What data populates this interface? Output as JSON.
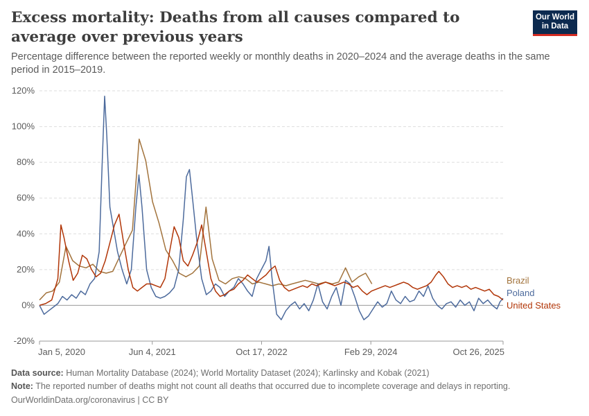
{
  "header": {
    "title": "Excess mortality: Deaths from all causes compared to average over previous years",
    "subtitle": "Percentage difference between the reported weekly or monthly deaths in 2020–2024 and the average deaths in the same period in 2015–2019."
  },
  "logo": {
    "line1": "Our World",
    "line2": "in Data"
  },
  "footer": {
    "source_label": "Data source:",
    "source_text": "Human Mortality Database (2024); World Mortality Dataset (2024); Karlinsky and Kobak (2021)",
    "note_label": "Note:",
    "note_text": "The reported number of deaths might not count all deaths that occurred due to incomplete coverage and delays in reporting.",
    "site": "OurWorldinData.org/coronavirus | CC BY"
  },
  "chart_data": {
    "type": "line",
    "xlabel": "",
    "ylabel": "",
    "xlim": [
      "2020-01-05",
      "2025-10-26"
    ],
    "ylim": [
      -20,
      120
    ],
    "y_ticks": [
      -20,
      0,
      20,
      40,
      60,
      80,
      100,
      120
    ],
    "y_tick_labels": [
      "-20%",
      "0%",
      "20%",
      "40%",
      "60%",
      "80%",
      "100%",
      "120%"
    ],
    "x_ticks": [
      "2020-01-05",
      "2021-06-04",
      "2022-10-17",
      "2024-02-29",
      "2025-10-26"
    ],
    "x_tick_labels": [
      "Jan 5, 2020",
      "Jun 4, 2021",
      "Oct 17, 2022",
      "Feb 29, 2024",
      "Oct 26, 2025"
    ],
    "grid": true,
    "legend": "right",
    "series": [
      {
        "name": "Brazil",
        "color": "#a2733c",
        "points": [
          [
            "2020-01-05",
            3
          ],
          [
            "2020-02-05",
            7
          ],
          [
            "2020-03-05",
            8
          ],
          [
            "2020-04-05",
            13
          ],
          [
            "2020-05-05",
            33
          ],
          [
            "2020-06-05",
            25
          ],
          [
            "2020-07-05",
            22
          ],
          [
            "2020-08-05",
            21
          ],
          [
            "2020-09-05",
            23
          ],
          [
            "2020-10-05",
            19
          ],
          [
            "2020-11-05",
            18
          ],
          [
            "2020-12-05",
            19
          ],
          [
            "2021-01-05",
            27
          ],
          [
            "2021-02-05",
            35
          ],
          [
            "2021-03-05",
            42
          ],
          [
            "2021-04-05",
            93
          ],
          [
            "2021-05-05",
            81
          ],
          [
            "2021-06-05",
            58
          ],
          [
            "2021-07-05",
            46
          ],
          [
            "2021-08-05",
            31
          ],
          [
            "2021-09-05",
            25
          ],
          [
            "2021-10-05",
            18
          ],
          [
            "2021-11-05",
            16
          ],
          [
            "2021-12-05",
            18
          ],
          [
            "2022-01-05",
            22
          ],
          [
            "2022-02-05",
            55
          ],
          [
            "2022-03-05",
            26
          ],
          [
            "2022-04-05",
            14
          ],
          [
            "2022-05-05",
            12
          ],
          [
            "2022-06-05",
            15
          ],
          [
            "2022-07-05",
            16
          ],
          [
            "2022-08-05",
            15
          ],
          [
            "2022-09-05",
            12
          ],
          [
            "2022-10-05",
            13
          ],
          [
            "2022-11-05",
            12
          ],
          [
            "2022-12-05",
            11
          ],
          [
            "2023-01-05",
            12
          ],
          [
            "2023-02-05",
            11
          ],
          [
            "2023-03-05",
            12
          ],
          [
            "2023-04-05",
            13
          ],
          [
            "2023-05-05",
            14
          ],
          [
            "2023-06-05",
            13
          ],
          [
            "2023-07-05",
            12
          ],
          [
            "2023-08-05",
            13
          ],
          [
            "2023-09-05",
            12
          ],
          [
            "2023-10-05",
            13
          ],
          [
            "2023-11-05",
            21
          ],
          [
            "2023-12-05",
            13
          ],
          [
            "2024-01-05",
            16
          ],
          [
            "2024-02-05",
            18
          ],
          [
            "2024-03-05",
            12
          ]
        ]
      },
      {
        "name": "Poland",
        "color": "#4c6a9c",
        "points": [
          [
            "2020-01-05",
            0
          ],
          [
            "2020-01-26",
            -5
          ],
          [
            "2020-02-16",
            -3
          ],
          [
            "2020-03-08",
            -1
          ],
          [
            "2020-03-29",
            1
          ],
          [
            "2020-04-19",
            5
          ],
          [
            "2020-05-10",
            3
          ],
          [
            "2020-05-31",
            6
          ],
          [
            "2020-06-21",
            4
          ],
          [
            "2020-07-12",
            8
          ],
          [
            "2020-08-02",
            6
          ],
          [
            "2020-08-23",
            12
          ],
          [
            "2020-09-13",
            15
          ],
          [
            "2020-10-04",
            30
          ],
          [
            "2020-10-18",
            80
          ],
          [
            "2020-10-29",
            117
          ],
          [
            "2020-11-08",
            95
          ],
          [
            "2020-11-22",
            55
          ],
          [
            "2020-12-06",
            45
          ],
          [
            "2020-12-27",
            30
          ],
          [
            "2021-01-17",
            20
          ],
          [
            "2021-02-07",
            12
          ],
          [
            "2021-02-28",
            20
          ],
          [
            "2021-03-21",
            55
          ],
          [
            "2021-04-04",
            73
          ],
          [
            "2021-04-18",
            55
          ],
          [
            "2021-05-09",
            20
          ],
          [
            "2021-05-30",
            10
          ],
          [
            "2021-06-20",
            5
          ],
          [
            "2021-07-11",
            4
          ],
          [
            "2021-08-01",
            5
          ],
          [
            "2021-08-22",
            7
          ],
          [
            "2021-09-12",
            10
          ],
          [
            "2021-10-03",
            20
          ],
          [
            "2021-10-24",
            48
          ],
          [
            "2021-11-07",
            72
          ],
          [
            "2021-11-21",
            76
          ],
          [
            "2021-12-05",
            60
          ],
          [
            "2021-12-26",
            35
          ],
          [
            "2022-01-16",
            15
          ],
          [
            "2022-02-06",
            6
          ],
          [
            "2022-02-27",
            8
          ],
          [
            "2022-03-20",
            12
          ],
          [
            "2022-04-10",
            10
          ],
          [
            "2022-05-01",
            5
          ],
          [
            "2022-05-22",
            8
          ],
          [
            "2022-06-12",
            10
          ],
          [
            "2022-07-03",
            15
          ],
          [
            "2022-07-24",
            12
          ],
          [
            "2022-08-14",
            8
          ],
          [
            "2022-09-04",
            5
          ],
          [
            "2022-09-25",
            15
          ],
          [
            "2022-10-16",
            20
          ],
          [
            "2022-11-06",
            25
          ],
          [
            "2022-11-20",
            33
          ],
          [
            "2022-12-04",
            15
          ],
          [
            "2022-12-25",
            -5
          ],
          [
            "2023-01-15",
            -8
          ],
          [
            "2023-02-05",
            -3
          ],
          [
            "2023-02-26",
            0
          ],
          [
            "2023-03-19",
            2
          ],
          [
            "2023-04-09",
            -2
          ],
          [
            "2023-04-30",
            1
          ],
          [
            "2023-05-21",
            -3
          ],
          [
            "2023-06-11",
            3
          ],
          [
            "2023-07-02",
            12
          ],
          [
            "2023-07-23",
            2
          ],
          [
            "2023-08-13",
            -2
          ],
          [
            "2023-09-03",
            5
          ],
          [
            "2023-09-24",
            10
          ],
          [
            "2023-10-15",
            0
          ],
          [
            "2023-11-05",
            14
          ],
          [
            "2023-11-26",
            12
          ],
          [
            "2023-12-17",
            5
          ],
          [
            "2024-01-07",
            -3
          ],
          [
            "2024-01-28",
            -8
          ],
          [
            "2024-02-18",
            -6
          ],
          [
            "2024-03-10",
            -2
          ],
          [
            "2024-03-31",
            2
          ],
          [
            "2024-04-21",
            -1
          ],
          [
            "2024-05-12",
            1
          ],
          [
            "2024-06-02",
            8
          ],
          [
            "2024-06-23",
            3
          ],
          [
            "2024-07-14",
            1
          ],
          [
            "2024-08-04",
            5
          ],
          [
            "2024-08-25",
            2
          ],
          [
            "2024-09-15",
            3
          ],
          [
            "2024-10-06",
            8
          ],
          [
            "2024-10-27",
            5
          ],
          [
            "2024-11-17",
            11
          ],
          [
            "2024-12-08",
            4
          ],
          [
            "2024-12-29",
            0
          ],
          [
            "2025-01-19",
            -2
          ],
          [
            "2025-02-09",
            1
          ],
          [
            "2025-03-02",
            2
          ],
          [
            "2025-03-23",
            -1
          ],
          [
            "2025-04-13",
            3
          ],
          [
            "2025-05-04",
            0
          ],
          [
            "2025-05-25",
            2
          ],
          [
            "2025-06-15",
            -3
          ],
          [
            "2025-07-06",
            4
          ],
          [
            "2025-07-27",
            1
          ],
          [
            "2025-08-17",
            3
          ],
          [
            "2025-09-07",
            0
          ],
          [
            "2025-09-28",
            -2
          ],
          [
            "2025-10-12",
            2
          ],
          [
            "2025-10-26",
            4
          ]
        ]
      },
      {
        "name": "United States",
        "color": "#b13507",
        "points": [
          [
            "2020-01-05",
            0
          ],
          [
            "2020-02-02",
            1
          ],
          [
            "2020-03-01",
            3
          ],
          [
            "2020-03-29",
            15
          ],
          [
            "2020-04-12",
            45
          ],
          [
            "2020-04-26",
            38
          ],
          [
            "2020-05-17",
            25
          ],
          [
            "2020-06-07",
            14
          ],
          [
            "2020-06-28",
            18
          ],
          [
            "2020-07-19",
            28
          ],
          [
            "2020-08-09",
            26
          ],
          [
            "2020-08-30",
            20
          ],
          [
            "2020-09-20",
            16
          ],
          [
            "2020-10-11",
            18
          ],
          [
            "2020-11-01",
            25
          ],
          [
            "2020-11-22",
            35
          ],
          [
            "2020-12-13",
            45
          ],
          [
            "2021-01-03",
            51
          ],
          [
            "2021-01-24",
            35
          ],
          [
            "2021-02-14",
            20
          ],
          [
            "2021-03-07",
            10
          ],
          [
            "2021-03-28",
            8
          ],
          [
            "2021-04-18",
            10
          ],
          [
            "2021-05-09",
            12
          ],
          [
            "2021-05-30",
            12
          ],
          [
            "2021-06-20",
            11
          ],
          [
            "2021-07-11",
            10
          ],
          [
            "2021-08-01",
            15
          ],
          [
            "2021-08-22",
            30
          ],
          [
            "2021-09-12",
            44
          ],
          [
            "2021-10-03",
            38
          ],
          [
            "2021-10-24",
            25
          ],
          [
            "2021-11-14",
            22
          ],
          [
            "2021-12-05",
            28
          ],
          [
            "2021-12-26",
            35
          ],
          [
            "2022-01-16",
            45
          ],
          [
            "2022-02-06",
            30
          ],
          [
            "2022-02-27",
            15
          ],
          [
            "2022-03-20",
            8
          ],
          [
            "2022-04-10",
            5
          ],
          [
            "2022-05-01",
            6
          ],
          [
            "2022-05-22",
            8
          ],
          [
            "2022-06-12",
            9
          ],
          [
            "2022-07-03",
            12
          ],
          [
            "2022-07-24",
            14
          ],
          [
            "2022-08-14",
            17
          ],
          [
            "2022-09-04",
            15
          ],
          [
            "2022-09-25",
            13
          ],
          [
            "2022-10-16",
            15
          ],
          [
            "2022-11-06",
            17
          ],
          [
            "2022-11-27",
            20
          ],
          [
            "2022-12-18",
            22
          ],
          [
            "2023-01-08",
            14
          ],
          [
            "2023-01-29",
            10
          ],
          [
            "2023-02-19",
            8
          ],
          [
            "2023-03-12",
            9
          ],
          [
            "2023-04-02",
            10
          ],
          [
            "2023-04-23",
            11
          ],
          [
            "2023-05-14",
            10
          ],
          [
            "2023-06-04",
            12
          ],
          [
            "2023-06-25",
            11
          ],
          [
            "2023-07-16",
            12
          ],
          [
            "2023-08-06",
            13
          ],
          [
            "2023-08-27",
            12
          ],
          [
            "2023-09-17",
            11
          ],
          [
            "2023-10-08",
            12
          ],
          [
            "2023-10-29",
            13
          ],
          [
            "2023-11-19",
            12
          ],
          [
            "2023-12-10",
            10
          ],
          [
            "2023-12-31",
            11
          ],
          [
            "2024-01-21",
            8
          ],
          [
            "2024-02-11",
            6
          ],
          [
            "2024-03-03",
            8
          ],
          [
            "2024-03-24",
            9
          ],
          [
            "2024-04-14",
            10
          ],
          [
            "2024-05-05",
            11
          ],
          [
            "2024-05-26",
            10
          ],
          [
            "2024-06-16",
            11
          ],
          [
            "2024-07-07",
            12
          ],
          [
            "2024-07-28",
            13
          ],
          [
            "2024-08-18",
            12
          ],
          [
            "2024-09-08",
            10
          ],
          [
            "2024-09-29",
            9
          ],
          [
            "2024-10-20",
            10
          ],
          [
            "2024-11-10",
            11
          ],
          [
            "2024-12-01",
            13
          ],
          [
            "2024-12-22",
            17
          ],
          [
            "2025-01-05",
            19
          ],
          [
            "2025-01-26",
            16
          ],
          [
            "2025-02-16",
            12
          ],
          [
            "2025-03-09",
            10
          ],
          [
            "2025-03-30",
            11
          ],
          [
            "2025-04-20",
            10
          ],
          [
            "2025-05-11",
            11
          ],
          [
            "2025-06-01",
            9
          ],
          [
            "2025-06-22",
            10
          ],
          [
            "2025-07-13",
            9
          ],
          [
            "2025-08-03",
            8
          ],
          [
            "2025-08-24",
            9
          ],
          [
            "2025-09-14",
            6
          ],
          [
            "2025-10-05",
            5
          ],
          [
            "2025-10-26",
            3
          ]
        ]
      }
    ]
  }
}
